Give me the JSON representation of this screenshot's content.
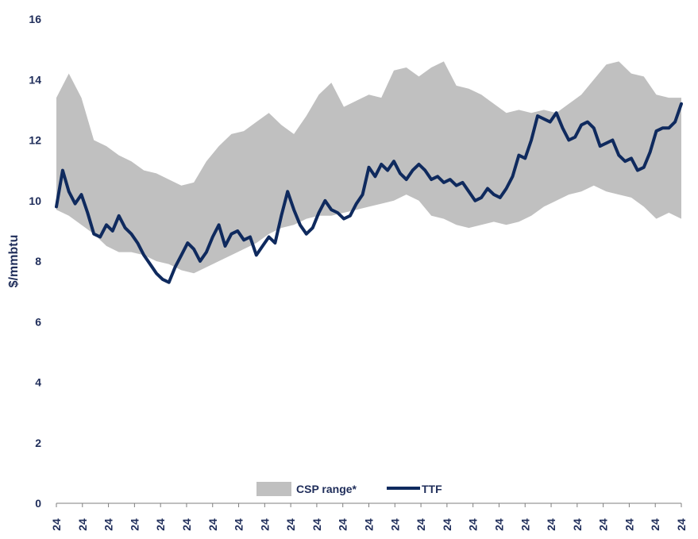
{
  "chart_data": {
    "type": "area",
    "title": "",
    "xlabel": "",
    "ylabel": "$/mmbtu",
    "ylim": [
      0,
      16
    ],
    "yticks": [
      0,
      2,
      4,
      6,
      8,
      10,
      12,
      14,
      16
    ],
    "xtick_labels": [
      "24",
      "24",
      "24",
      "24",
      "24",
      "24",
      "24",
      "24",
      "24",
      "24",
      "24",
      "24",
      "24",
      "24",
      "24",
      "24",
      "24",
      "24",
      "24",
      "24",
      "24",
      "24",
      "24",
      "24",
      "24"
    ],
    "grid": false,
    "legend_position": "bottom-center",
    "series": [
      {
        "name": "CSP range*",
        "kind": "band",
        "color": "#c0c0c0",
        "x": [
          0,
          4,
          8,
          12,
          16,
          20,
          24,
          28,
          32,
          36,
          40,
          44,
          48,
          52,
          56,
          60,
          64,
          68,
          72,
          76,
          80,
          84,
          88,
          92,
          96,
          100,
          104,
          108,
          112,
          116,
          120,
          124,
          128,
          132,
          136,
          140,
          144,
          148,
          152,
          156,
          160,
          164,
          168,
          172,
          176,
          180,
          184,
          188,
          192,
          196,
          200
        ],
        "upper": [
          13.4,
          14.2,
          13.4,
          12.0,
          11.8,
          11.5,
          11.3,
          11.0,
          10.9,
          10.7,
          10.5,
          10.6,
          11.3,
          11.8,
          12.2,
          12.3,
          12.6,
          12.9,
          12.5,
          12.2,
          12.8,
          13.5,
          13.9,
          13.1,
          13.3,
          13.5,
          13.4,
          14.3,
          14.4,
          14.1,
          14.4,
          14.6,
          13.8,
          13.7,
          13.5,
          13.2,
          12.9,
          13.0,
          12.9,
          13.0,
          12.9,
          13.2,
          13.5,
          14.0,
          14.5,
          14.6,
          14.2,
          14.1,
          13.5,
          13.4,
          13.4
        ],
        "lower": [
          9.7,
          9.5,
          9.2,
          8.9,
          8.5,
          8.3,
          8.3,
          8.2,
          8.0,
          7.9,
          7.7,
          7.6,
          7.8,
          8.0,
          8.2,
          8.4,
          8.6,
          8.9,
          9.1,
          9.2,
          9.4,
          9.5,
          9.5,
          9.6,
          9.7,
          9.8,
          9.9,
          10.0,
          10.2,
          10.0,
          9.5,
          9.4,
          9.2,
          9.1,
          9.2,
          9.3,
          9.2,
          9.3,
          9.5,
          9.8,
          10.0,
          10.2,
          10.3,
          10.5,
          10.3,
          10.2,
          10.1,
          9.8,
          9.4,
          9.6,
          9.4
        ]
      },
      {
        "name": "TTF",
        "kind": "line",
        "color": "#0f2a5e",
        "x": [
          0,
          2,
          4,
          6,
          8,
          10,
          12,
          14,
          16,
          18,
          20,
          22,
          24,
          26,
          28,
          30,
          32,
          34,
          36,
          38,
          40,
          42,
          44,
          46,
          48,
          50,
          52,
          54,
          56,
          58,
          60,
          62,
          64,
          66,
          68,
          70,
          72,
          74,
          76,
          78,
          80,
          82,
          84,
          86,
          88,
          90,
          92,
          94,
          96,
          98,
          100,
          102,
          104,
          106,
          108,
          110,
          112,
          114,
          116,
          118,
          120,
          122,
          124,
          126,
          128,
          130,
          132,
          134,
          136,
          138,
          140,
          142,
          144,
          146,
          148,
          150,
          152,
          154,
          156,
          158,
          160,
          162,
          164,
          166,
          168,
          170,
          172,
          174,
          176,
          178,
          180,
          182,
          184,
          186,
          188,
          190,
          192,
          194,
          196,
          198,
          200
        ],
        "values": [
          9.8,
          11.0,
          10.3,
          9.9,
          10.2,
          9.6,
          8.9,
          8.8,
          9.2,
          9.0,
          9.5,
          9.1,
          8.9,
          8.6,
          8.2,
          7.9,
          7.6,
          7.4,
          7.3,
          7.8,
          8.2,
          8.6,
          8.4,
          8.0,
          8.3,
          8.8,
          9.2,
          8.5,
          8.9,
          9.0,
          8.7,
          8.8,
          8.2,
          8.5,
          8.8,
          8.6,
          9.5,
          10.3,
          9.7,
          9.2,
          8.9,
          9.1,
          9.6,
          10.0,
          9.7,
          9.6,
          9.4,
          9.5,
          9.9,
          10.2,
          11.1,
          10.8,
          11.2,
          11.0,
          11.3,
          10.9,
          10.7,
          11.0,
          11.2,
          11.0,
          10.7,
          10.8,
          10.6,
          10.7,
          10.5,
          10.6,
          10.3,
          10.0,
          10.1,
          10.4,
          10.2,
          10.1,
          10.4,
          10.8,
          11.5,
          11.4,
          12.0,
          12.8,
          12.7,
          12.6,
          12.9,
          12.4,
          12.0,
          12.1,
          12.5,
          12.6,
          12.4,
          11.8,
          11.9,
          12.0,
          11.5,
          11.3,
          11.4,
          11.0,
          11.1,
          11.6,
          12.3,
          12.4,
          12.4,
          12.6,
          13.2
        ]
      }
    ]
  }
}
